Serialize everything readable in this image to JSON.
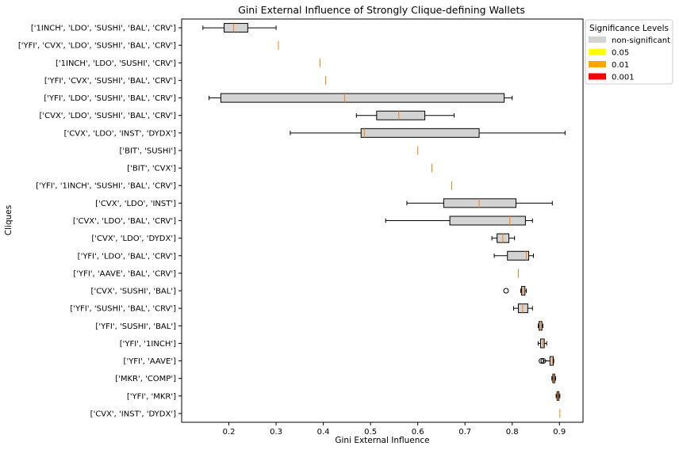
{
  "chart_data": {
    "type": "boxplot",
    "orientation": "horizontal",
    "title": "Gini External Influence of Strongly Clique-defining Wallets",
    "xlabel": "Gini External Influence",
    "ylabel": "Cliques",
    "xlim": [
      0.1,
      0.95
    ],
    "xticks": [
      "0.2",
      "0.3",
      "0.4",
      "0.5",
      "0.6",
      "0.7",
      "0.8",
      "0.9"
    ],
    "xtick_values": [
      0.2,
      0.3,
      0.4,
      0.5,
      0.6,
      0.7,
      0.8,
      0.9
    ],
    "grid": false,
    "legend": {
      "title": "Significance Levels",
      "placement": "outside upper-right",
      "entries": [
        {
          "label": "non-significant",
          "color": "#d3d3d3"
        },
        {
          "label": "0.05",
          "color": "#ffff00"
        },
        {
          "label": "0.01",
          "color": "#ffa500"
        },
        {
          "label": "0.001",
          "color": "#ff0000"
        }
      ]
    },
    "median_color": "#ff7f0e",
    "box_color": "#d3d3d3",
    "categories": [
      "['1INCH', 'LDO', 'SUSHI', 'BAL', 'CRV']",
      "['YFI', 'CVX', 'LDO', 'SUSHI', 'BAL', 'CRV']",
      "['1INCH', 'LDO', 'SUSHI', 'CRV']",
      "['YFI', 'CVX', 'SUSHI', 'BAL', 'CRV']",
      "['YFI', 'LDO', 'SUSHI', 'BAL', 'CRV']",
      "['CVX', 'LDO', 'SUSHI', 'BAL', 'CRV']",
      "['CVX', 'LDO', 'INST', 'DYDX']",
      "['BIT', 'SUSHI']",
      "['BIT', 'CVX']",
      "['YFI', '1INCH', 'SUSHI', 'BAL', 'CRV']",
      "['CVX', 'LDO', 'INST']",
      "['CVX', 'LDO', 'BAL', 'CRV']",
      "['CVX', 'LDO', 'DYDX']",
      "['YFI', 'LDO', 'BAL', 'CRV']",
      "['YFI', 'AAVE', 'BAL', 'CRV']",
      "['CVX', 'SUSHI', 'BAL']",
      "['YFI', 'SUSHI', 'BAL', 'CRV']",
      "['YFI', 'SUSHI', 'BAL']",
      "['YFI', '1INCH']",
      "['YFI', 'AAVE']",
      "['MKR', 'COMP']",
      "['YFI', 'MKR']",
      "['CVX', 'INST', 'DYDX']"
    ],
    "boxes": [
      {
        "whislo": 0.145,
        "q1": 0.19,
        "med": 0.21,
        "q3": 0.24,
        "whishi": 0.3,
        "fliers": []
      },
      {
        "whislo": 0.305,
        "q1": 0.305,
        "med": 0.305,
        "q3": 0.305,
        "whishi": 0.305,
        "fliers": []
      },
      {
        "whislo": 0.393,
        "q1": 0.393,
        "med": 0.393,
        "q3": 0.393,
        "whishi": 0.393,
        "fliers": []
      },
      {
        "whislo": 0.405,
        "q1": 0.405,
        "med": 0.405,
        "q3": 0.405,
        "whishi": 0.405,
        "fliers": []
      },
      {
        "whislo": 0.158,
        "q1": 0.183,
        "med": 0.445,
        "q3": 0.783,
        "whishi": 0.8,
        "fliers": []
      },
      {
        "whislo": 0.47,
        "q1": 0.513,
        "med": 0.56,
        "q3": 0.615,
        "whishi": 0.677,
        "fliers": []
      },
      {
        "whislo": 0.33,
        "q1": 0.48,
        "med": 0.487,
        "q3": 0.73,
        "whishi": 0.912,
        "fliers": []
      },
      {
        "whislo": 0.6,
        "q1": 0.6,
        "med": 0.6,
        "q3": 0.6,
        "whishi": 0.6,
        "fliers": []
      },
      {
        "whislo": 0.63,
        "q1": 0.63,
        "med": 0.63,
        "q3": 0.63,
        "whishi": 0.63,
        "fliers": []
      },
      {
        "whislo": 0.672,
        "q1": 0.672,
        "med": 0.672,
        "q3": 0.672,
        "whishi": 0.672,
        "fliers": []
      },
      {
        "whislo": 0.577,
        "q1": 0.655,
        "med": 0.73,
        "q3": 0.808,
        "whishi": 0.885,
        "fliers": []
      },
      {
        "whislo": 0.532,
        "q1": 0.668,
        "med": 0.795,
        "q3": 0.828,
        "whishi": 0.843,
        "fliers": []
      },
      {
        "whislo": 0.757,
        "q1": 0.768,
        "med": 0.78,
        "q3": 0.793,
        "whishi": 0.805,
        "fliers": []
      },
      {
        "whislo": 0.762,
        "q1": 0.79,
        "med": 0.83,
        "q3": 0.835,
        "whishi": 0.845,
        "fliers": []
      },
      {
        "whislo": 0.813,
        "q1": 0.813,
        "med": 0.813,
        "q3": 0.813,
        "whishi": 0.813,
        "fliers": []
      },
      {
        "whislo": 0.818,
        "q1": 0.82,
        "med": 0.823,
        "q3": 0.827,
        "whishi": 0.83,
        "fliers": [
          0.787
        ]
      },
      {
        "whislo": 0.803,
        "q1": 0.813,
        "med": 0.822,
        "q3": 0.833,
        "whishi": 0.843,
        "fliers": []
      },
      {
        "whislo": 0.855,
        "q1": 0.857,
        "med": 0.86,
        "q3": 0.863,
        "whishi": 0.865,
        "fliers": []
      },
      {
        "whislo": 0.855,
        "q1": 0.86,
        "med": 0.865,
        "q3": 0.868,
        "whishi": 0.873,
        "fliers": []
      },
      {
        "whislo": 0.866,
        "q1": 0.88,
        "med": 0.885,
        "q3": 0.887,
        "whishi": 0.888,
        "fliers": [
          0.862,
          0.866
        ]
      },
      {
        "whislo": 0.884,
        "q1": 0.886,
        "med": 0.888,
        "q3": 0.89,
        "whishi": 0.892,
        "fliers": []
      },
      {
        "whislo": 0.893,
        "q1": 0.895,
        "med": 0.897,
        "q3": 0.899,
        "whishi": 0.901,
        "fliers": []
      },
      {
        "whislo": 0.901,
        "q1": 0.901,
        "med": 0.901,
        "q3": 0.901,
        "whishi": 0.901,
        "fliers": []
      }
    ]
  }
}
